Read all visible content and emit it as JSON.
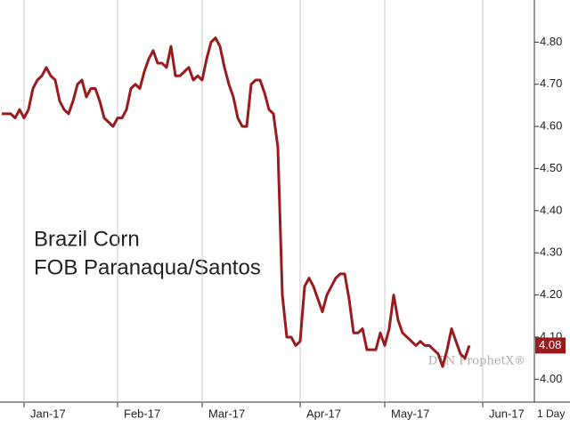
{
  "chart_data": {
    "type": "line",
    "annotations": [
      "Brazil Corn",
      "FOB Paranaqua/Santos"
    ],
    "watermark": "DTN ProphetX®",
    "periodicity": "1 Day",
    "color": "#9a1b1e",
    "categories": [
      null,
      null,
      null,
      null,
      null,
      "Jan-17",
      null,
      null,
      null,
      null,
      null,
      null,
      null,
      null,
      null,
      null,
      null,
      null,
      null,
      null,
      null,
      null,
      null,
      null,
      null,
      null,
      "Feb-17",
      null,
      null,
      null,
      null,
      null,
      null,
      null,
      null,
      null,
      null,
      null,
      null,
      null,
      null,
      null,
      null,
      null,
      null,
      "Mar-17",
      null,
      null,
      null,
      null,
      null,
      null,
      null,
      null,
      null,
      null,
      null,
      null,
      null,
      null,
      null,
      null,
      null,
      null,
      null,
      null,
      null,
      "Apr-17",
      null,
      null,
      null,
      null,
      null,
      null,
      null,
      null,
      null,
      null,
      null,
      null,
      null,
      null,
      null,
      null,
      null,
      null,
      "May-17",
      null,
      null,
      null,
      null,
      null,
      null,
      null,
      null,
      null,
      null,
      null,
      null,
      null,
      null,
      null,
      null,
      null,
      null,
      null,
      null,
      null,
      "Jun-17",
      null,
      null,
      null,
      null,
      null,
      null,
      null,
      null,
      null,
      null,
      null
    ],
    "values": [
      4.63,
      4.63,
      4.63,
      4.62,
      4.64,
      4.62,
      4.64,
      4.69,
      4.71,
      4.72,
      4.74,
      4.72,
      4.71,
      4.66,
      4.64,
      4.63,
      4.66,
      4.7,
      4.71,
      4.67,
      4.69,
      4.69,
      4.66,
      4.62,
      4.61,
      4.6,
      4.62,
      4.62,
      4.64,
      4.69,
      4.7,
      4.69,
      4.73,
      4.76,
      4.78,
      4.75,
      4.75,
      4.74,
      4.79,
      4.72,
      4.72,
      4.73,
      4.74,
      4.71,
      4.72,
      4.71,
      4.76,
      4.8,
      4.81,
      4.79,
      4.74,
      4.7,
      4.67,
      4.62,
      4.6,
      4.6,
      4.7,
      4.71,
      4.71,
      4.68,
      4.64,
      4.63,
      4.55,
      4.2,
      4.1,
      4.1,
      4.08,
      4.09,
      4.22,
      4.24,
      4.22,
      4.19,
      4.16,
      4.2,
      4.22,
      4.24,
      4.25,
      4.25,
      4.19,
      4.11,
      4.11,
      4.12,
      4.07,
      4.07,
      4.07,
      4.11,
      4.08,
      4.12,
      4.2,
      4.14,
      4.11,
      4.1,
      4.09,
      4.08,
      4.09,
      4.08,
      4.08,
      4.07,
      4.06,
      4.03,
      4.07,
      4.12,
      4.09,
      4.06,
      4.05,
      4.08,
      null,
      null,
      null,
      null,
      null,
      null,
      null,
      null,
      null,
      null,
      null,
      null,
      null,
      null
    ],
    "ylim": [
      3.95,
      4.9
    ],
    "yticks": [
      {
        "value": 4,
        "label": "4.00"
      },
      {
        "value": 4.1,
        "label": "4.10"
      },
      {
        "value": 4.2,
        "label": "4.20"
      },
      {
        "value": 4.3,
        "label": "4.30"
      },
      {
        "value": 4.4,
        "label": "4.40"
      },
      {
        "value": 4.5,
        "label": "4.50"
      },
      {
        "value": 4.6,
        "label": "4.60"
      },
      {
        "value": 4.7,
        "label": "4.70"
      },
      {
        "value": 4.8,
        "label": "4.80"
      }
    ],
    "grid": true
  }
}
